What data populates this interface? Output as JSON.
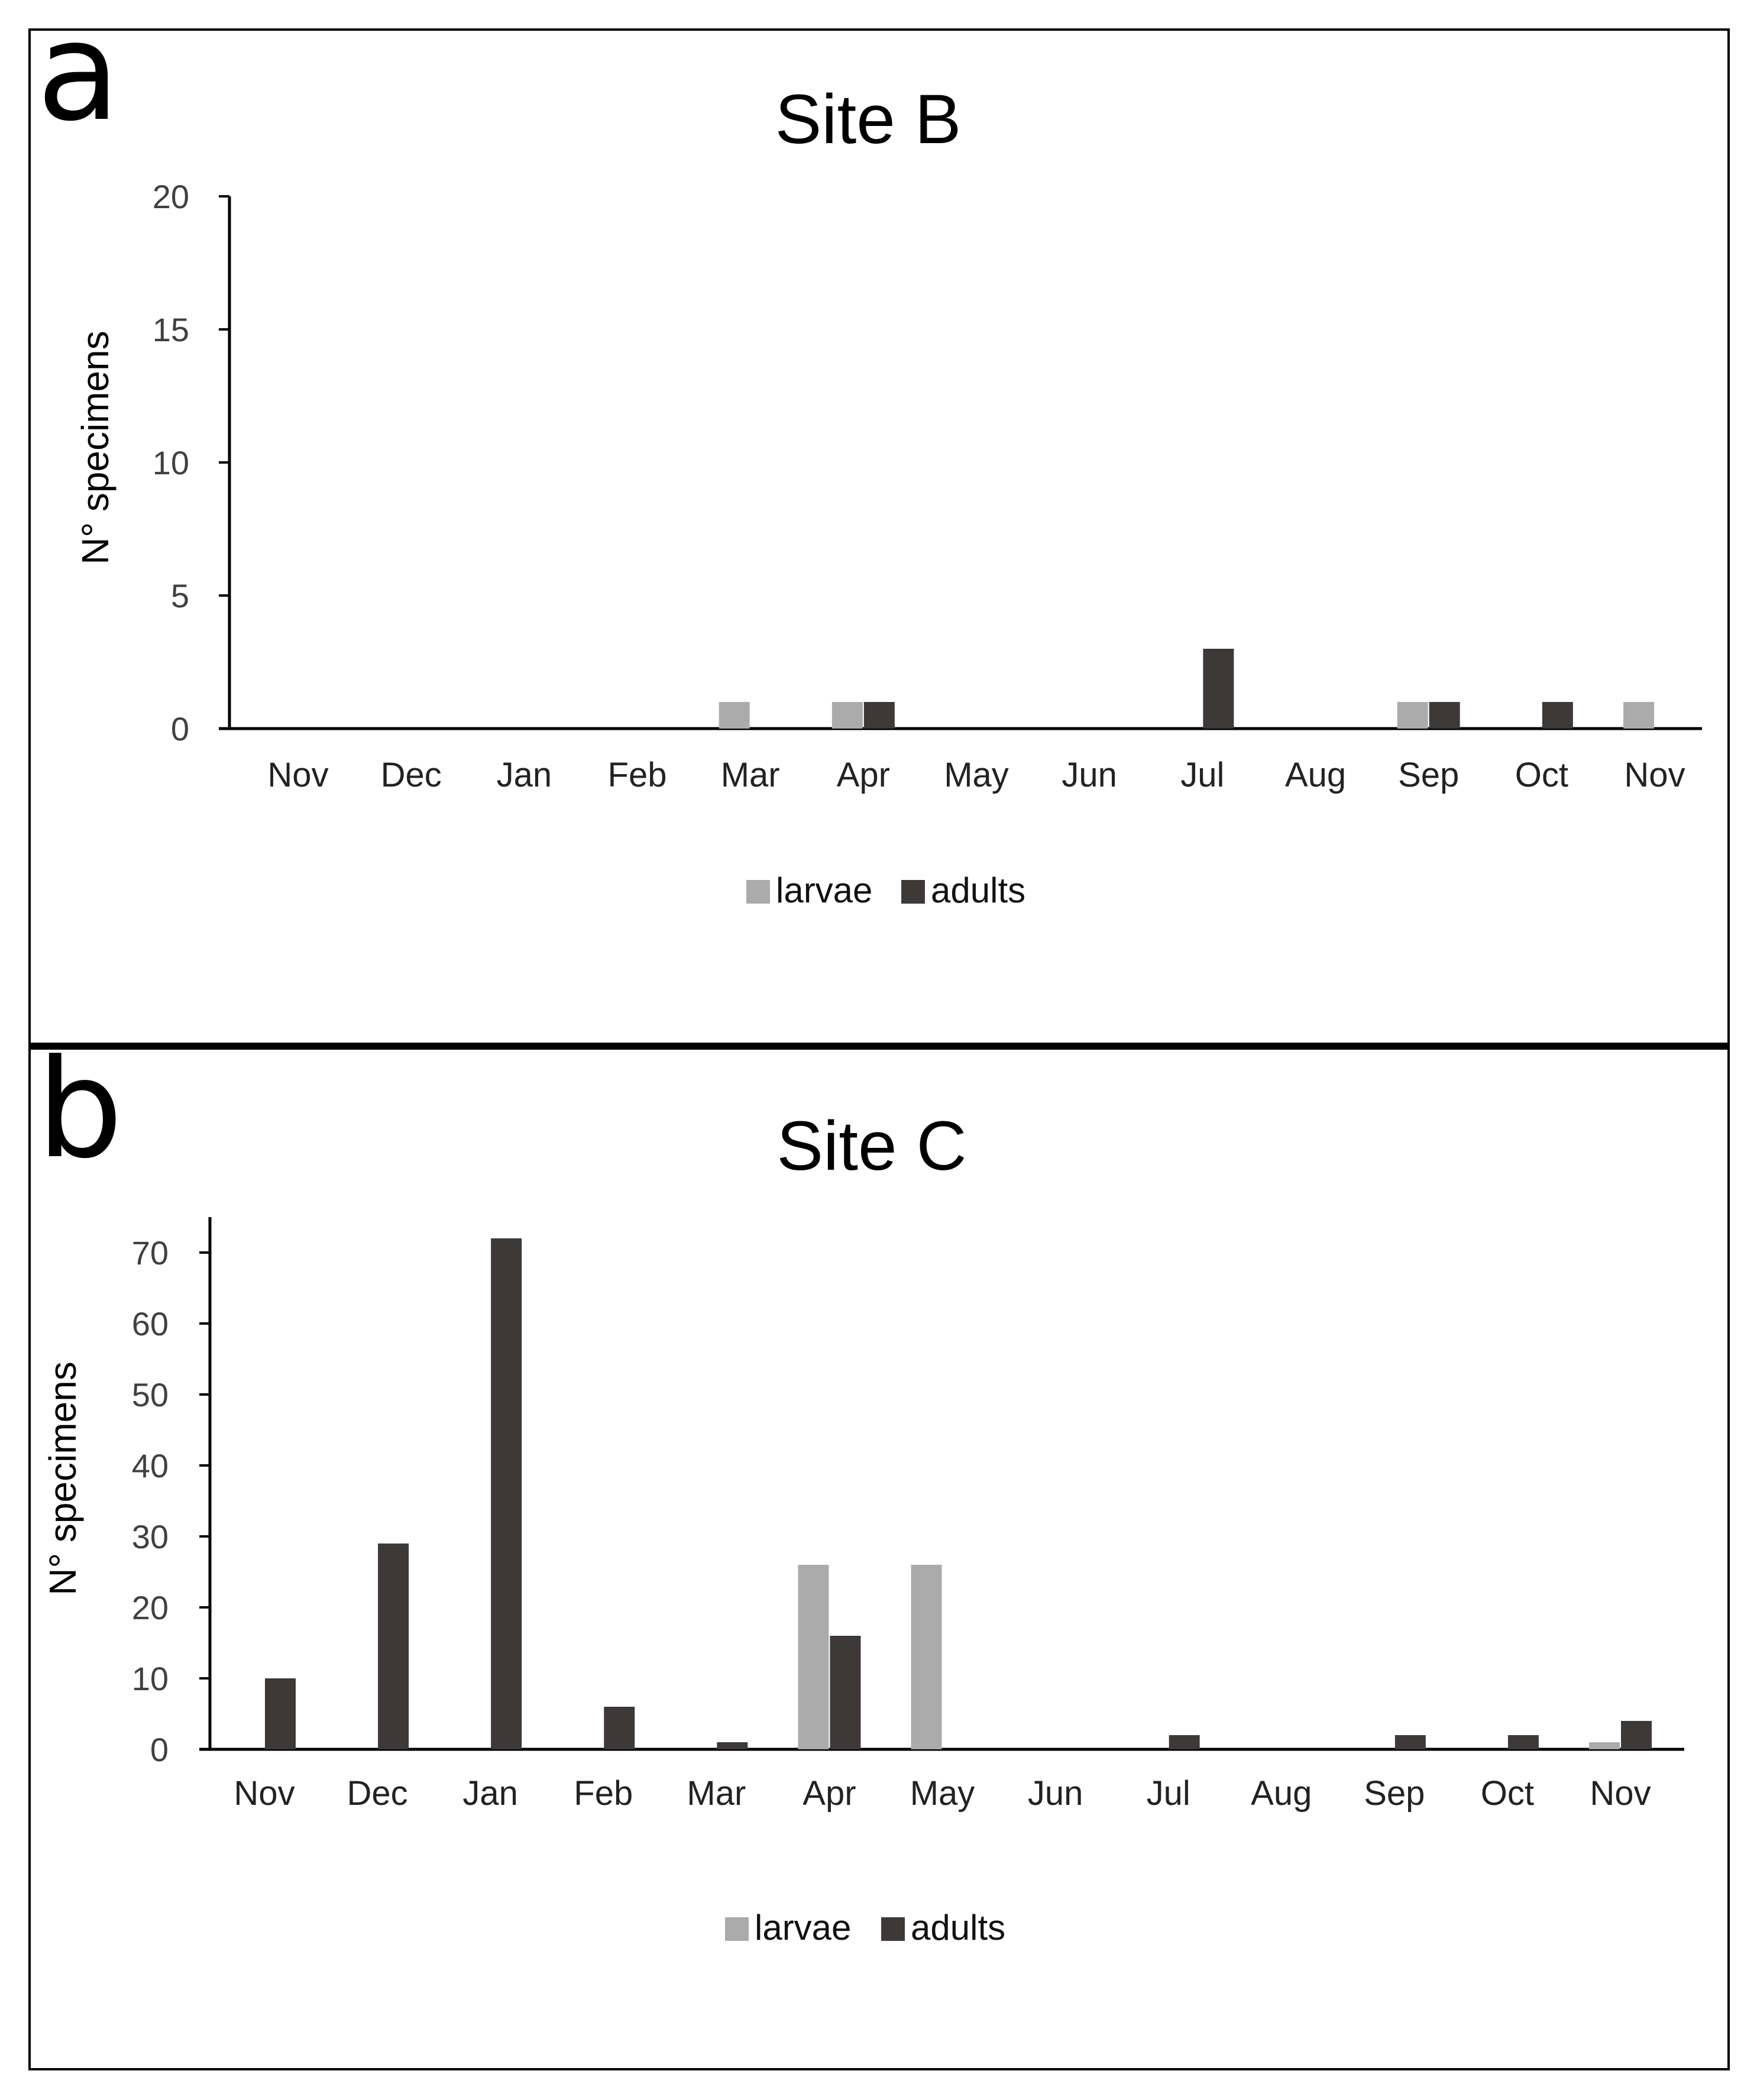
{
  "panels": {
    "a": {
      "letter": "a"
    },
    "b": {
      "letter": "b"
    }
  },
  "colors": {
    "larvae": "#ababab",
    "adults": "#3d3938",
    "axis": "#000000"
  },
  "chart_data": [
    {
      "type": "bar",
      "title": "Site B",
      "xlabel": "",
      "ylabel": "N° specimens",
      "ylim": [
        0,
        20
      ],
      "yticks": [
        0,
        5,
        10,
        15,
        20
      ],
      "categories": [
        "Nov",
        "Dec",
        "Jan",
        "Feb",
        "Mar",
        "Apr",
        "May",
        "Jun",
        "Jul",
        "Aug",
        "Sep",
        "Oct",
        "Nov"
      ],
      "series": [
        {
          "name": "larvae",
          "values": [
            0,
            0,
            0,
            0,
            1,
            1,
            0,
            0,
            0,
            0,
            1,
            0,
            1
          ]
        },
        {
          "name": "adults",
          "values": [
            0,
            0,
            0,
            0,
            0,
            1,
            0,
            0,
            3,
            0,
            1,
            1,
            0
          ]
        }
      ],
      "legend": "bottom",
      "grid": false
    },
    {
      "type": "bar",
      "title": "Site C",
      "xlabel": "",
      "ylabel": "N° specimens",
      "ylim": [
        0,
        75
      ],
      "yticks": [
        0,
        10,
        20,
        30,
        40,
        50,
        60,
        70
      ],
      "categories": [
        "Nov",
        "Dec",
        "Jan",
        "Feb",
        "Mar",
        "Apr",
        "May",
        "Jun",
        "Jul",
        "Aug",
        "Sep",
        "Oct",
        "Nov"
      ],
      "series": [
        {
          "name": "larvae",
          "values": [
            0,
            0,
            0,
            0,
            0,
            26,
            26,
            0,
            0,
            0,
            0,
            0,
            1
          ]
        },
        {
          "name": "adults",
          "values": [
            10,
            29,
            72,
            6,
            1,
            16,
            0,
            0,
            2,
            0,
            2,
            2,
            4
          ]
        }
      ],
      "legend": "bottom",
      "grid": false
    }
  ]
}
